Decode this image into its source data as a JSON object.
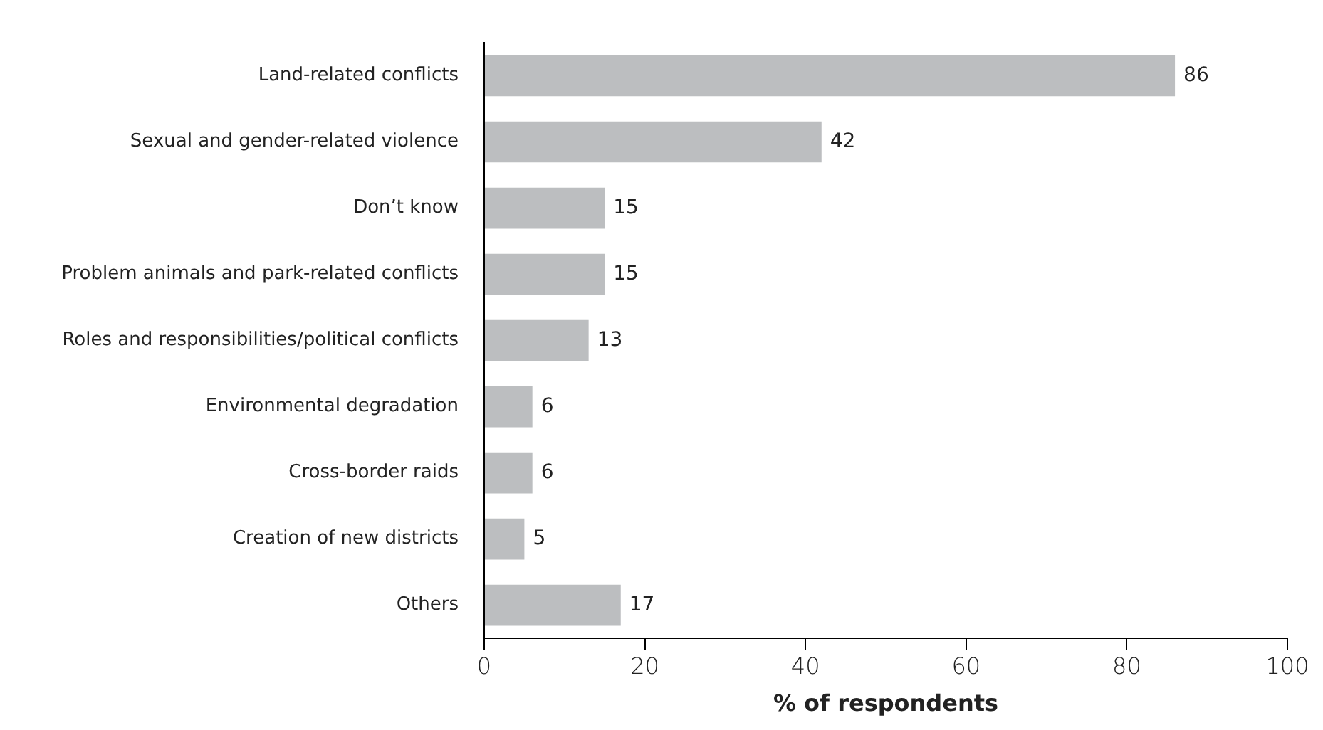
{
  "chart_data": {
    "type": "bar",
    "orientation": "horizontal",
    "xlabel": "% of respondents",
    "categories": [
      "Land-related conflicts",
      "Sexual and gender-related violence",
      "Don’t know",
      "Problem animals and park-related conflicts",
      "Roles and responsibilities/political conflicts",
      "Environmental degradation",
      "Cross-border raids",
      "Creation of new districts",
      "Others"
    ],
    "values": [
      86,
      42,
      15,
      15,
      13,
      6,
      6,
      5,
      17
    ],
    "color": "#bcbec0",
    "xlim": [
      0,
      100
    ],
    "xticks": [
      0,
      20,
      40,
      60,
      80,
      100
    ],
    "grid": false,
    "legend": false,
    "data_labels": true
  }
}
